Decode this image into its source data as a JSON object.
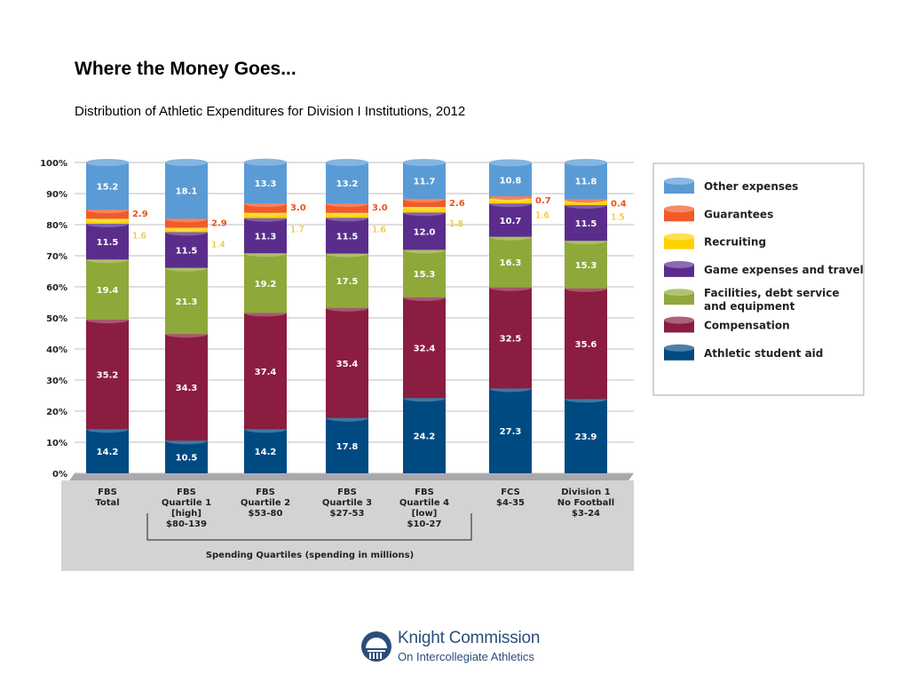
{
  "title": "Where the Money Goes...",
  "subtitle": "Distribution of Athletic Expenditures for Division I Institutions, 2012",
  "chart_data": {
    "type": "bar",
    "stacked": true,
    "y_tick_labels": [
      "0%",
      "10%",
      "20%",
      "30%",
      "40%",
      "50%",
      "60%",
      "70%",
      "80%",
      "90%",
      "100%"
    ],
    "ylim": [
      0,
      100
    ],
    "grid": true,
    "categories": [
      [
        "FBS",
        "Total"
      ],
      [
        "FBS",
        "Quartile 1",
        "[high]",
        "$80-139"
      ],
      [
        "FBS",
        "Quartile 2",
        "$53-80"
      ],
      [
        "FBS",
        "Quartile 3",
        "$27-53"
      ],
      [
        "FBS",
        "Quartile 4",
        "[low]",
        "$10-27"
      ],
      [
        "FCS",
        "$4-35"
      ],
      [
        "Division 1",
        "No Football",
        "$3-24"
      ]
    ],
    "bracket_label": "Spending Quartiles (spending in millions)",
    "series": [
      {
        "name": "Athletic student aid",
        "color": "#004a82",
        "values": [
          14.2,
          10.5,
          14.2,
          17.8,
          24.2,
          27.3,
          23.9
        ]
      },
      {
        "name": "Compensation",
        "color": "#8b1d40",
        "values": [
          35.2,
          34.3,
          37.4,
          35.4,
          32.4,
          32.5,
          35.6
        ]
      },
      {
        "name": "Facilities, debt service and equipment",
        "color": "#8fa83a",
        "values": [
          19.4,
          21.3,
          19.2,
          17.5,
          15.3,
          16.3,
          15.3
        ]
      },
      {
        "name": "Game expenses and travel",
        "color": "#5a2d8c",
        "values": [
          11.5,
          11.5,
          11.3,
          11.5,
          12.0,
          10.7,
          11.5
        ]
      },
      {
        "name": "Recruiting",
        "color": "#ffd200",
        "values": [
          1.6,
          1.4,
          1.7,
          1.6,
          1.8,
          1.6,
          1.5
        ]
      },
      {
        "name": "Guarantees",
        "color": "#f15a29",
        "values": [
          2.9,
          2.9,
          3.0,
          3.0,
          2.6,
          0.7,
          0.4
        ]
      },
      {
        "name": "Other expenses",
        "color": "#5b9bd5",
        "values": [
          15.2,
          18.1,
          13.3,
          13.2,
          11.7,
          10.8,
          11.8
        ]
      }
    ],
    "legend_items": [
      {
        "label": "Other expenses",
        "color": "#5b9bd5"
      },
      {
        "label": "Guarantees",
        "color": "#f15a29"
      },
      {
        "label": "Recruiting",
        "color": "#ffd200"
      },
      {
        "label": "Game expenses and travel",
        "color": "#5a2d8c"
      },
      {
        "label": "Facilities, debt service and equipment",
        "color": "#8fa83a"
      },
      {
        "label": "Compensation",
        "color": "#8b1d40"
      },
      {
        "label": "Athletic student aid",
        "color": "#004a82"
      }
    ],
    "legend_placement": "right"
  },
  "logo": {
    "line1": "Knight Commission",
    "line2": "On Intercollegiate Athletics"
  }
}
